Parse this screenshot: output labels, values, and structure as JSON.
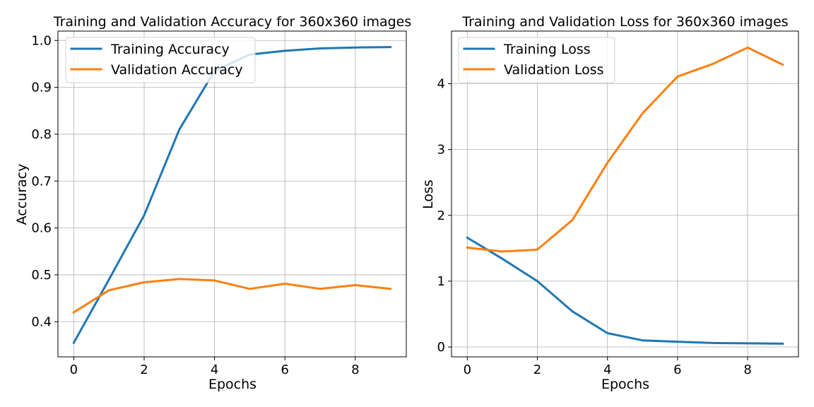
{
  "chart_data": [
    {
      "type": "line",
      "title": "Training and Validation Accuracy for 360x360 images",
      "xlabel": "Epochs",
      "ylabel": "Accuracy",
      "x": [
        0,
        1,
        2,
        3,
        4,
        5,
        6,
        7,
        8,
        9
      ],
      "xlim": [
        -0.45,
        9.45
      ],
      "ylim": [
        0.325,
        1.02
      ],
      "xticks": [
        0,
        2,
        4,
        6,
        8
      ],
      "xtick_labels": [
        "0",
        "2",
        "4",
        "6",
        "8"
      ],
      "yticks": [
        0.4,
        0.5,
        0.6,
        0.7,
        0.8,
        0.9,
        1.0
      ],
      "ytick_labels": [
        "0.4",
        "0.5",
        "0.6",
        "0.7",
        "0.8",
        "0.9",
        "1.0"
      ],
      "grid": true,
      "legend": "upper-left",
      "series": [
        {
          "name": "Training Accuracy",
          "color": "#1f77b4",
          "values": [
            0.355,
            0.49,
            0.627,
            0.81,
            0.935,
            0.97,
            0.978,
            0.983,
            0.985,
            0.986
          ]
        },
        {
          "name": "Validation Accuracy",
          "color": "#ff7f0e",
          "values": [
            0.42,
            0.467,
            0.484,
            0.491,
            0.488,
            0.47,
            0.481,
            0.47,
            0.478,
            0.47
          ]
        }
      ]
    },
    {
      "type": "line",
      "title": "Training and Validation Loss for 360x360 images",
      "xlabel": "Epochs",
      "ylabel": "Loss",
      "x": [
        0,
        1,
        2,
        3,
        4,
        5,
        6,
        7,
        8,
        9
      ],
      "xlim": [
        -0.45,
        9.45
      ],
      "ylim": [
        -0.15,
        4.8
      ],
      "xticks": [
        0,
        2,
        4,
        6,
        8
      ],
      "xtick_labels": [
        "0",
        "2",
        "4",
        "6",
        "8"
      ],
      "yticks": [
        0,
        1,
        2,
        3,
        4
      ],
      "ytick_labels": [
        "0",
        "1",
        "2",
        "3",
        "4"
      ],
      "grid": true,
      "legend": "upper-left",
      "series": [
        {
          "name": "Training Loss",
          "color": "#1f77b4",
          "values": [
            1.66,
            1.34,
            1.0,
            0.54,
            0.21,
            0.1,
            0.08,
            0.06,
            0.055,
            0.05
          ]
        },
        {
          "name": "Validation Loss",
          "color": "#ff7f0e",
          "values": [
            1.51,
            1.45,
            1.48,
            1.93,
            2.8,
            3.55,
            4.11,
            4.3,
            4.55,
            4.29
          ]
        }
      ]
    }
  ]
}
